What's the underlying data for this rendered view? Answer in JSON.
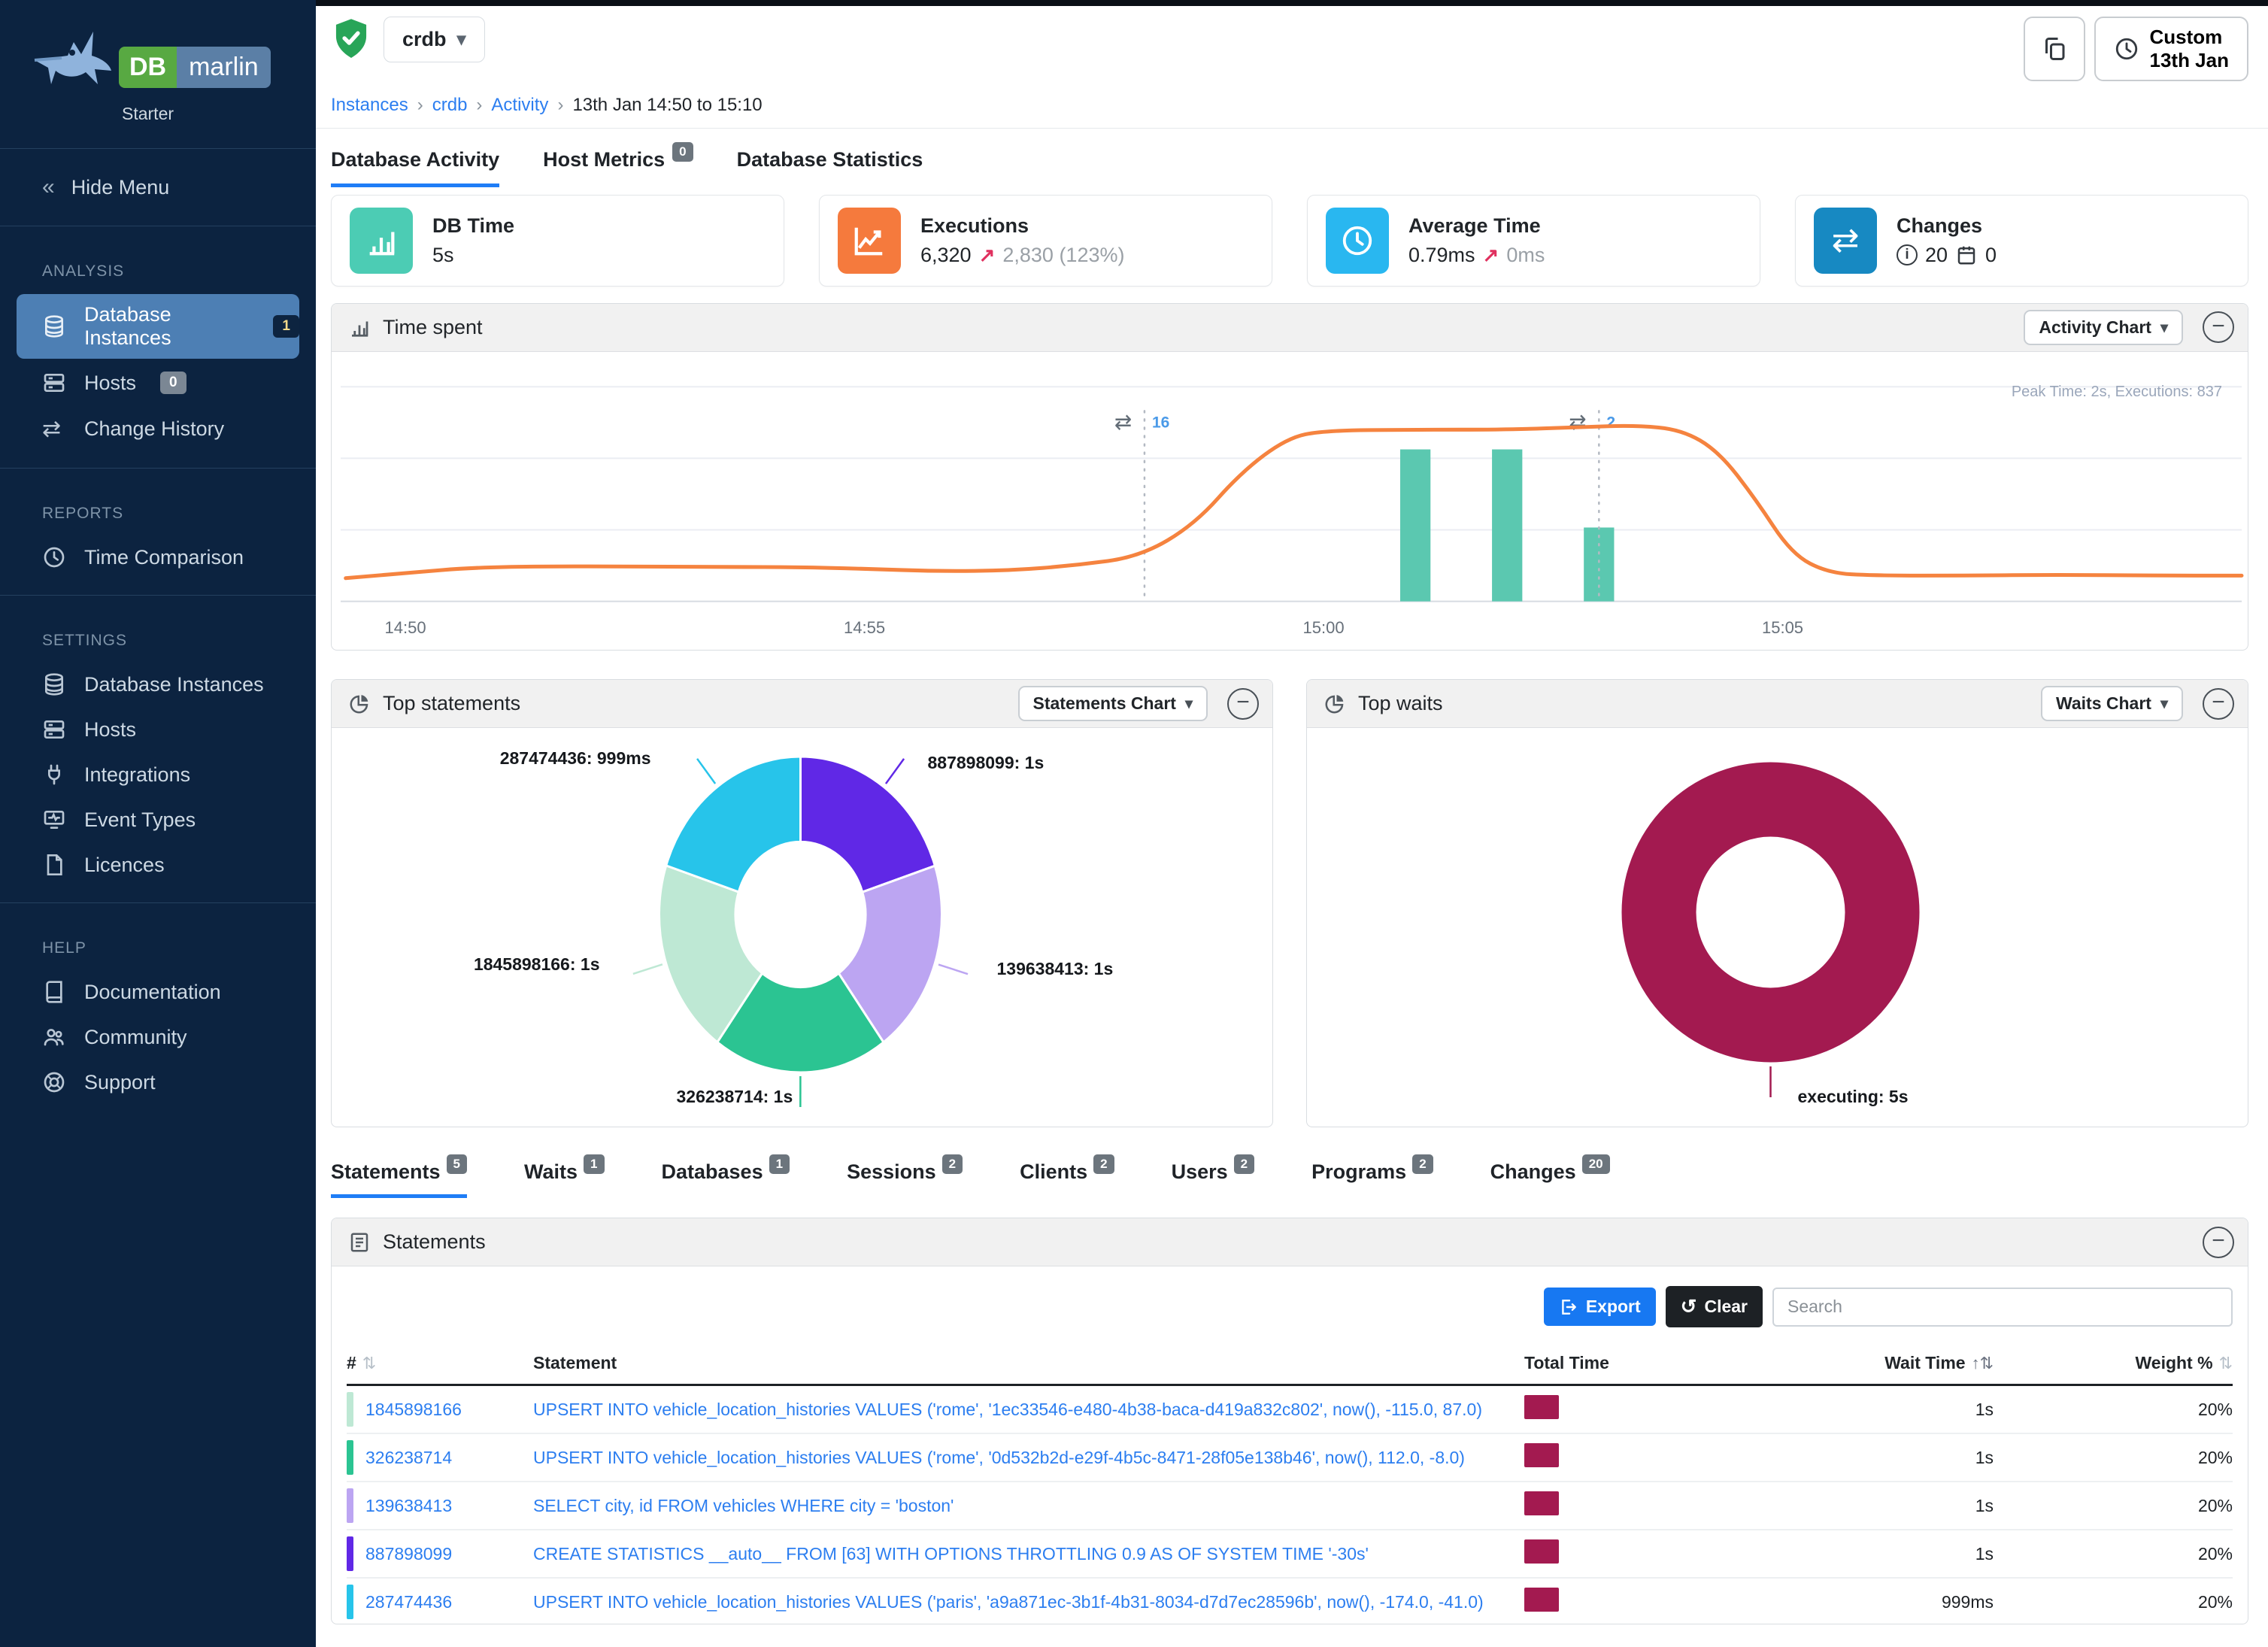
{
  "brand": {
    "db": "DB",
    "name": "marlin",
    "plan": "Starter"
  },
  "sidebar": {
    "hide_menu": "Hide Menu",
    "sections": [
      {
        "title": "ANALYSIS",
        "items": [
          {
            "label": "Database Instances",
            "badge": "1"
          },
          {
            "label": "Hosts",
            "badge": "0"
          },
          {
            "label": "Change History"
          }
        ]
      },
      {
        "title": "REPORTS",
        "items": [
          {
            "label": "Time Comparison"
          }
        ]
      },
      {
        "title": "SETTINGS",
        "items": [
          {
            "label": "Database Instances"
          },
          {
            "label": "Hosts"
          },
          {
            "label": "Integrations"
          },
          {
            "label": "Event Types"
          },
          {
            "label": "Licences"
          }
        ]
      },
      {
        "title": "HELP",
        "items": [
          {
            "label": "Documentation"
          },
          {
            "label": "Community"
          },
          {
            "label": "Support"
          }
        ]
      }
    ]
  },
  "header": {
    "instance_name": "crdb",
    "breadcrumb": {
      "links": [
        "Instances",
        "crdb",
        "Activity"
      ],
      "current": "13th Jan 14:50 to 15:10"
    },
    "time_range": {
      "line1": "Custom",
      "line2": "13th Jan"
    }
  },
  "tabs": [
    {
      "label": "Database Activity"
    },
    {
      "label": "Host Metrics",
      "badge": "0"
    },
    {
      "label": "Database Statistics"
    }
  ],
  "cards": [
    {
      "title": "DB Time",
      "value": "5s",
      "icon_bg": "#4cccb4"
    },
    {
      "title": "Executions",
      "value": "6,320",
      "trend_arrow": "↗",
      "trend_value": "2,830 (123%)",
      "icon_bg": "#f57a3d"
    },
    {
      "title": "Average Time",
      "value": "0.79ms",
      "trend_arrow": "↗",
      "trend_value": "0ms",
      "icon_bg": "#29b7f0"
    },
    {
      "title": "Changes",
      "info_count": "20",
      "calendar_count": "0",
      "icon_bg": "#1789c2"
    }
  ],
  "panels": {
    "time_spent": {
      "title": "Time spent",
      "selector": "Activity Chart"
    },
    "top_statements": {
      "title": "Top statements",
      "selector": "Statements Chart"
    },
    "top_waits": {
      "title": "Top waits",
      "selector": "Waits Chart"
    }
  },
  "chart_data": [
    {
      "type": "line+bar",
      "title": "Time spent",
      "note": "Peak Time: 2s, Executions: 837",
      "x_axis": {
        "tick_labels": [
          "14:50",
          "14:55",
          "15:00",
          "15:05"
        ],
        "tick_minutes": [
          0,
          5,
          10,
          15
        ],
        "start": "14:50",
        "end": "15:10"
      },
      "y_axis": {
        "unit": "seconds",
        "max": 2.5,
        "gridlines": 4,
        "grid": true
      },
      "line_series": {
        "name": "DB Time",
        "color": "#f5833f",
        "points_min_sec": [
          [
            -0.65,
            0.27
          ],
          [
            0,
            0.33
          ],
          [
            0.8,
            0.4
          ],
          [
            2,
            0.41
          ],
          [
            3.2,
            0.4
          ],
          [
            4.2,
            0.4
          ],
          [
            5,
            0.38
          ],
          [
            5.8,
            0.35
          ],
          [
            6.6,
            0.36
          ],
          [
            7.3,
            0.42
          ],
          [
            8,
            0.52
          ],
          [
            8.6,
            0.9
          ],
          [
            9.1,
            1.5
          ],
          [
            9.6,
            1.9
          ],
          [
            10,
            1.99
          ],
          [
            11,
            2.0
          ],
          [
            12,
            2.0
          ],
          [
            12.8,
            2.03
          ],
          [
            13.4,
            2.05
          ],
          [
            13.9,
            2.0
          ],
          [
            14.3,
            1.75
          ],
          [
            14.7,
            1.2
          ],
          [
            15.1,
            0.55
          ],
          [
            15.5,
            0.33
          ],
          [
            16,
            0.3
          ],
          [
            17,
            0.3
          ],
          [
            18,
            0.31
          ],
          [
            19,
            0.3
          ],
          [
            20,
            0.3
          ]
        ]
      },
      "bar_series": {
        "name": "Changes",
        "color": "#5bc8b0",
        "bar_width_minutes": 0.33,
        "points_min_sec": [
          [
            11,
            1.77
          ],
          [
            12,
            1.77
          ],
          [
            13,
            0.86
          ]
        ]
      },
      "annotations": [
        {
          "minute": 8.05,
          "label": "16"
        },
        {
          "minute": 13,
          "label": "2"
        }
      ]
    },
    {
      "type": "donut",
      "title": "Top statements",
      "segments": [
        {
          "name": "887898099",
          "value_label": "1s",
          "value": 1,
          "color": "#6028e6"
        },
        {
          "name": "139638413",
          "value_label": "1s",
          "value": 1,
          "color": "#bca5f2"
        },
        {
          "name": "326238714",
          "value_label": "1s",
          "value": 1,
          "color": "#2bc492"
        },
        {
          "name": "1845898166",
          "value_label": "1s",
          "value": 1,
          "color": "#bee8d4"
        },
        {
          "name": "287474436",
          "value_label": "999ms",
          "value": 0.999,
          "color": "#27c4ea"
        }
      ]
    },
    {
      "type": "donut",
      "title": "Top waits",
      "segments": [
        {
          "name": "executing",
          "value_label": "5s",
          "value": 5,
          "color": "#a31a50"
        }
      ]
    }
  ],
  "bottom_tabs": [
    {
      "label": "Statements",
      "badge": "5"
    },
    {
      "label": "Waits",
      "badge": "1"
    },
    {
      "label": "Databases",
      "badge": "1"
    },
    {
      "label": "Sessions",
      "badge": "2"
    },
    {
      "label": "Clients",
      "badge": "2"
    },
    {
      "label": "Users",
      "badge": "2"
    },
    {
      "label": "Programs",
      "badge": "2"
    },
    {
      "label": "Changes",
      "badge": "20"
    }
  ],
  "statements_table": {
    "title": "Statements",
    "export_label": "Export",
    "clear_label": "Clear",
    "search_placeholder": "Search",
    "columns": {
      "num": "#",
      "statement": "Statement",
      "total_time": "Total Time",
      "wait_time": "Wait Time",
      "weight": "Weight %"
    },
    "total_bar_color": "#a31a50",
    "rows": [
      {
        "id": "1845898166",
        "color": "#bee8d4",
        "statement": "UPSERT INTO vehicle_location_histories VALUES ('rome', '1ec33546-e480-4b38-baca-d419a832c802', now(), -115.0, 87.0)",
        "wait_time": "1s",
        "weight": "20%"
      },
      {
        "id": "326238714",
        "color": "#2bc492",
        "statement": "UPSERT INTO vehicle_location_histories VALUES ('rome', '0d532b2d-e29f-4b5c-8471-28f05e138b46', now(), 112.0, -8.0)",
        "wait_time": "1s",
        "weight": "20%"
      },
      {
        "id": "139638413",
        "color": "#bca5f2",
        "statement": "SELECT city, id FROM vehicles WHERE city = 'boston'",
        "wait_time": "1s",
        "weight": "20%"
      },
      {
        "id": "887898099",
        "color": "#6028e6",
        "statement": "CREATE STATISTICS __auto__ FROM [63] WITH OPTIONS THROTTLING 0.9 AS OF SYSTEM TIME '-30s'",
        "wait_time": "1s",
        "weight": "20%"
      },
      {
        "id": "287474436",
        "color": "#27c4ea",
        "statement": "UPSERT INTO vehicle_location_histories VALUES ('paris', 'a9a871ec-3b1f-4b31-8034-d7d7ec28596b', now(), -174.0, -41.0)",
        "wait_time": "999ms",
        "weight": "20%"
      }
    ]
  }
}
